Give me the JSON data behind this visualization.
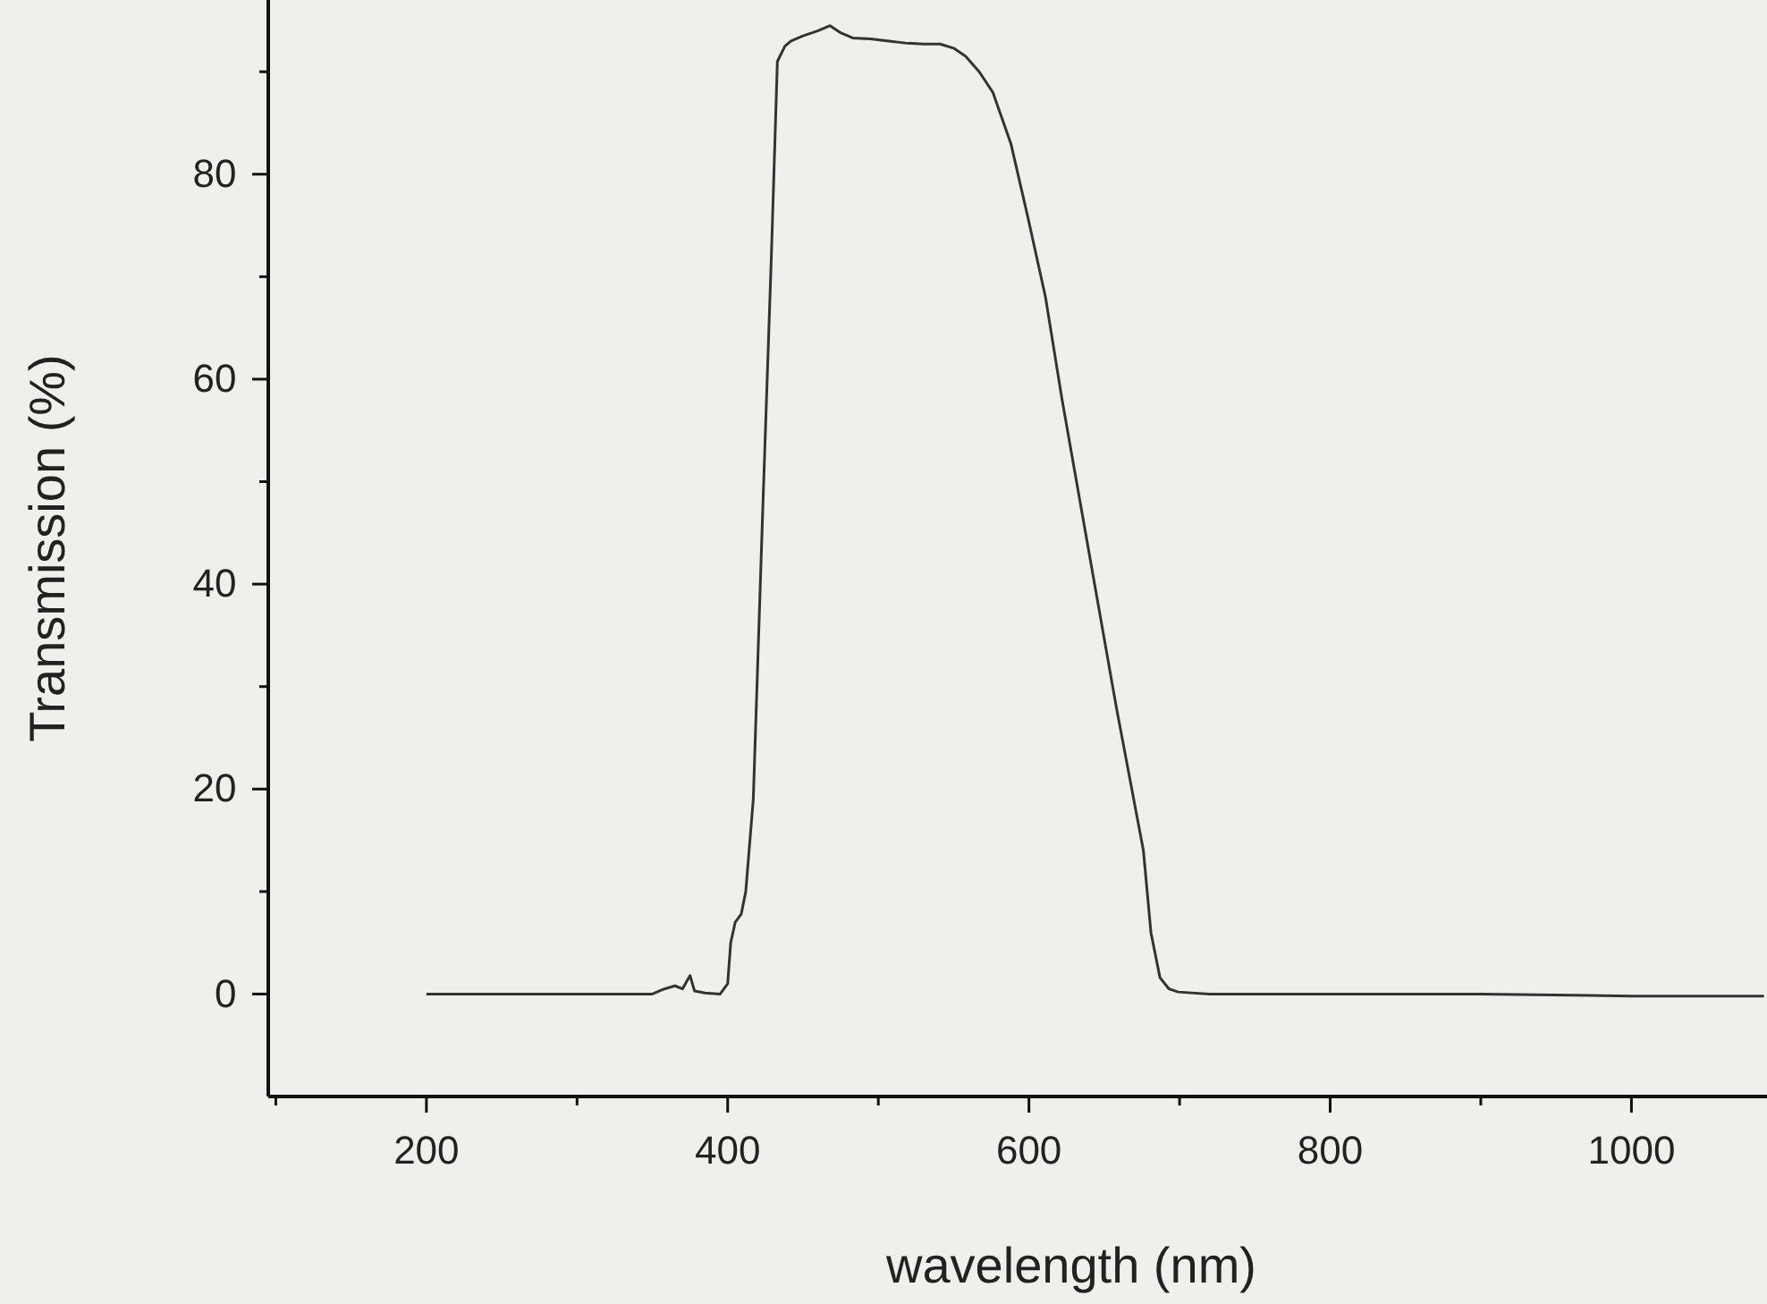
{
  "chart_data": {
    "type": "line",
    "xlabel": "wavelength (nm)",
    "ylabel": "Transmission (%)",
    "xlim": [
      95,
      1090
    ],
    "ylim": [
      -10,
      97
    ],
    "xticks": [
      {
        "value": 100,
        "label": null
      },
      200,
      {
        "value": 300,
        "label": null
      },
      400,
      {
        "value": 500,
        "label": null
      },
      600,
      {
        "value": 700,
        "label": null
      },
      800,
      {
        "value": 900,
        "label": null
      },
      1000
    ],
    "yticks": [
      0,
      {
        "value": 10,
        "label": null
      },
      20,
      {
        "value": 30,
        "label": null
      },
      40,
      {
        "value": 50,
        "label": null
      },
      60,
      {
        "value": 70,
        "label": null
      },
      80,
      {
        "value": 90,
        "label": null
      }
    ],
    "grid": false,
    "marker": "none",
    "line_style": "solid",
    "series": [
      {
        "color": "#333333",
        "x": [
          200,
          250,
          300,
          350,
          358,
          365,
          370,
          375,
          378,
          385,
          395,
          400,
          402,
          405,
          409,
          412,
          417,
          423,
          429,
          433,
          438,
          442,
          450,
          460,
          468,
          475,
          483,
          495,
          506,
          518,
          530,
          541,
          550,
          558,
          567,
          576,
          588,
          599,
          611,
          622,
          634,
          646,
          658,
          667,
          676,
          681,
          687,
          693,
          699,
          720,
          800,
          900,
          1000,
          1088
        ],
        "values": [
          0,
          0,
          0,
          0,
          0.5,
          0.8,
          0.5,
          1.8,
          0.3,
          0.1,
          0,
          1,
          5,
          7,
          7.8,
          10,
          19,
          46,
          72,
          91,
          92.5,
          93,
          93.5,
          94,
          94.5,
          93.8,
          93.3,
          93.2,
          93,
          92.8,
          92.7,
          92.7,
          92.3,
          91.5,
          90,
          88,
          83,
          76,
          68,
          58,
          48,
          38,
          28,
          21,
          14,
          6,
          1.6,
          0.5,
          0.2,
          0,
          0,
          0,
          -0.2,
          -0.2
        ]
      }
    ]
  }
}
